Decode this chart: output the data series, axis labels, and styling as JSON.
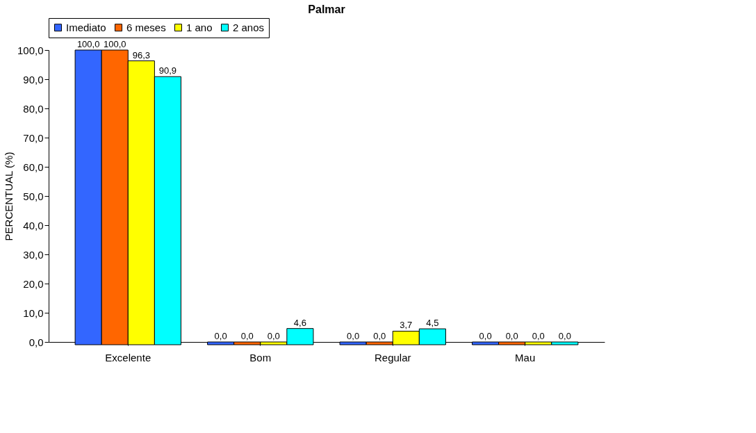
{
  "chart_data": {
    "type": "bar",
    "title": "Palmar",
    "ylabel": "PERCENTUAL (%)",
    "categories": [
      "Excelente",
      "Bom",
      "Regular",
      "Mau"
    ],
    "series": [
      {
        "name": "Imediato",
        "color": "#3366ff",
        "values": [
          100.0,
          0.0,
          0.0,
          0.0
        ],
        "value_labels": [
          "100,0",
          "0,0",
          "0,0",
          "0,0"
        ]
      },
      {
        "name": "6 meses",
        "color": "#ff6600",
        "values": [
          100.0,
          0.0,
          0.0,
          0.0
        ],
        "value_labels": [
          "100,0",
          "0,0",
          "0,0",
          "0,0"
        ]
      },
      {
        "name": "1 ano",
        "color": "#ffff00",
        "values": [
          96.3,
          0.0,
          3.7,
          0.0
        ],
        "value_labels": [
          "96,3",
          "0,0",
          "3,7",
          "0,0"
        ]
      },
      {
        "name": "2 anos",
        "color": "#00ffff",
        "values": [
          90.9,
          4.6,
          4.5,
          0.0
        ],
        "value_labels": [
          "90,9",
          "4,6",
          "4,5",
          "0,0"
        ]
      }
    ],
    "ylim": [
      0,
      100
    ],
    "yticks": [
      {
        "value": 0,
        "label": "0,0"
      },
      {
        "value": 10,
        "label": "10,0"
      },
      {
        "value": 20,
        "label": "20,0"
      },
      {
        "value": 30,
        "label": "30,0"
      },
      {
        "value": 40,
        "label": "40,0"
      },
      {
        "value": 50,
        "label": "50,0"
      },
      {
        "value": 60,
        "label": "60,0"
      },
      {
        "value": 70,
        "label": "70,0"
      },
      {
        "value": 80,
        "label": "80,0"
      },
      {
        "value": 90,
        "label": "90,0"
      },
      {
        "value": 100,
        "label": "100,0"
      }
    ],
    "grid": false,
    "legend": "top"
  }
}
